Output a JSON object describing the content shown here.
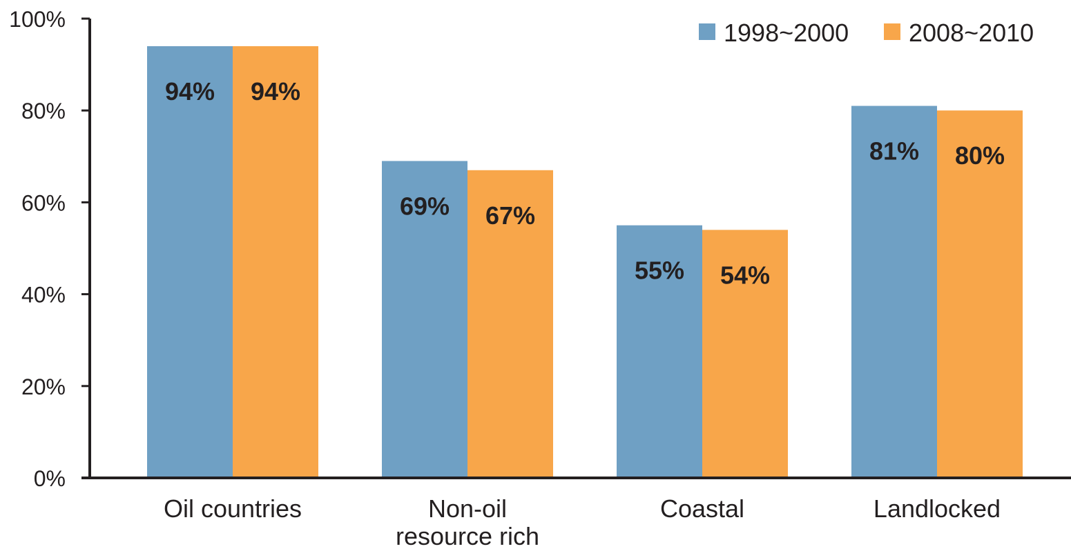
{
  "chart_data": {
    "type": "bar",
    "categories": [
      [
        "Oil countries"
      ],
      [
        "Non-oil",
        "resource rich"
      ],
      [
        "Coastal"
      ],
      [
        "Landlocked"
      ]
    ],
    "series": [
      {
        "name": "1998~2000",
        "color": "#6fa0c4",
        "values": [
          94,
          69,
          55,
          81
        ],
        "labels": [
          "94%",
          "69%",
          "55%",
          "81%"
        ]
      },
      {
        "name": "2008~2010",
        "color": "#f8a64a",
        "values": [
          94,
          67,
          54,
          80
        ],
        "labels": [
          "94%",
          "67%",
          "54%",
          "80%"
        ]
      }
    ],
    "ylim": [
      0,
      100
    ],
    "yticks": [
      0,
      20,
      40,
      60,
      80,
      100
    ],
    "ytick_labels": [
      "0%",
      "20%",
      "40%",
      "60%",
      "80%",
      "100%"
    ],
    "title": "",
    "xlabel": "",
    "ylabel": "",
    "grid": false,
    "legend_position": "top-right"
  }
}
